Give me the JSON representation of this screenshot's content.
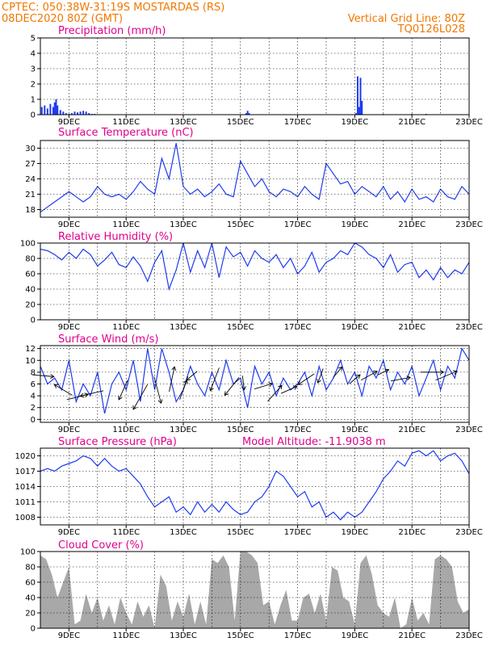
{
  "header": {
    "line1_left": "CPTEC:   050:38W-31:19S   MOSTARDAS (RS)",
    "line2_left": "08DEC2020 80Z (GMT)",
    "line1_right": "Vertical Grid Line: 80Z",
    "line2_right": "TQ0126L028"
  },
  "colors": {
    "line": "#1e3cf0",
    "bar": "#1e3cf0",
    "cloud": "#a8a8a8",
    "header": "#f07800",
    "title": "#e0008c"
  },
  "x_axis": {
    "start_day": 8,
    "end_day": 23,
    "ticks": [
      {
        "day": 9,
        "label": "9DEC"
      },
      {
        "day": 11,
        "label": "11DEC"
      },
      {
        "day": 13,
        "label": "13DEC"
      },
      {
        "day": 15,
        "label": "15DEC"
      },
      {
        "day": 17,
        "label": "17DEC"
      },
      {
        "day": 19,
        "label": "19DEC"
      },
      {
        "day": 21,
        "label": "21DEC"
      },
      {
        "day": 23,
        "label": "23DEC"
      }
    ]
  },
  "chart_data": [
    {
      "id": "precip",
      "type": "bar",
      "title": "Precipitation (mm/h)",
      "ylim": [
        0,
        5
      ],
      "yticks": [
        0,
        1,
        2,
        3,
        4,
        5
      ],
      "x": [
        8.05,
        8.15,
        8.25,
        8.35,
        8.45,
        8.5,
        8.55,
        8.6,
        8.7,
        8.8,
        8.9,
        9.0,
        9.1,
        9.2,
        9.3,
        9.4,
        9.5,
        9.6,
        9.7,
        9.8,
        9.9,
        15.2,
        15.25,
        15.3,
        19.05,
        19.1,
        19.15,
        19.2,
        19.25,
        20.0,
        21.0,
        21.5
      ],
      "values": [
        0.5,
        0.6,
        0.4,
        0.7,
        0.5,
        0.8,
        1.0,
        0.6,
        0.3,
        0.2,
        0.1,
        0.05,
        0.1,
        0.2,
        0.15,
        0.2,
        0.25,
        0.2,
        0.1,
        0.05,
        0.05,
        0.1,
        0.25,
        0.1,
        0.1,
        2.5,
        0.5,
        2.4,
        0.9,
        0.05,
        0.05,
        0.05
      ]
    },
    {
      "id": "temp",
      "type": "line",
      "title": "Surface Temperature (nC)",
      "ylim": [
        16.5,
        31.5
      ],
      "yticks": [
        18,
        21,
        24,
        27,
        30
      ],
      "x": [
        8,
        8.25,
        8.5,
        8.75,
        9,
        9.25,
        9.5,
        9.75,
        10,
        10.25,
        10.5,
        10.75,
        11,
        11.25,
        11.5,
        11.75,
        12,
        12.25,
        12.5,
        12.75,
        13,
        13.25,
        13.5,
        13.75,
        14,
        14.25,
        14.5,
        14.75,
        15,
        15.25,
        15.5,
        15.75,
        16,
        16.25,
        16.5,
        16.75,
        17,
        17.25,
        17.5,
        17.75,
        18,
        18.25,
        18.5,
        18.75,
        19,
        19.25,
        19.5,
        19.75,
        20,
        20.25,
        20.5,
        20.75,
        21,
        21.25,
        21.5,
        21.75,
        22,
        22.25,
        22.5,
        22.75,
        23
      ],
      "values": [
        17.5,
        18.5,
        19.5,
        20.5,
        21.5,
        20.5,
        19.5,
        20.5,
        22.5,
        21,
        20.5,
        21,
        20,
        21.5,
        23.5,
        22,
        21,
        28,
        24,
        31,
        22.5,
        21,
        22,
        20.5,
        21.5,
        23,
        21,
        20.5,
        27.5,
        25,
        22.5,
        24,
        21.5,
        20.5,
        22,
        21.5,
        20.5,
        22.5,
        21,
        20,
        27,
        25,
        23,
        23.5,
        21,
        22.5,
        21.5,
        20.5,
        22.5,
        20,
        21.5,
        19.5,
        22,
        20,
        20.5,
        19.5,
        22,
        20.5,
        20,
        22.5,
        21
      ]
    },
    {
      "id": "rh",
      "type": "line",
      "title": "Relative Humidity (%)",
      "ylim": [
        0,
        100
      ],
      "yticks": [
        0,
        20,
        40,
        60,
        80,
        100
      ],
      "x": [
        8,
        8.25,
        8.5,
        8.75,
        9,
        9.25,
        9.5,
        9.75,
        10,
        10.25,
        10.5,
        10.75,
        11,
        11.25,
        11.5,
        11.75,
        12,
        12.25,
        12.5,
        12.75,
        13,
        13.25,
        13.5,
        13.75,
        14,
        14.25,
        14.5,
        14.75,
        15,
        15.25,
        15.5,
        15.75,
        16,
        16.25,
        16.5,
        16.75,
        17,
        17.25,
        17.5,
        17.75,
        18,
        18.25,
        18.5,
        18.75,
        19,
        19.25,
        19.5,
        19.75,
        20,
        20.25,
        20.5,
        20.75,
        21,
        21.25,
        21.5,
        21.75,
        22,
        22.25,
        22.5,
        22.75,
        23
      ],
      "values": [
        92,
        90,
        85,
        78,
        88,
        80,
        92,
        85,
        70,
        78,
        88,
        72,
        68,
        82,
        70,
        50,
        75,
        90,
        40,
        65,
        100,
        62,
        90,
        68,
        100,
        55,
        95,
        82,
        88,
        70,
        90,
        80,
        75,
        85,
        68,
        80,
        60,
        70,
        88,
        62,
        75,
        80,
        90,
        85,
        100,
        95,
        85,
        80,
        68,
        85,
        62,
        72,
        75,
        55,
        65,
        52,
        68,
        55,
        65,
        60,
        75
      ]
    },
    {
      "id": "wind",
      "type": "line",
      "title": "Surface Wind (m/s)",
      "ylim": [
        -0.5,
        12.5
      ],
      "yticks": [
        0,
        2,
        4,
        6,
        8,
        10,
        12
      ],
      "x": [
        8,
        8.25,
        8.5,
        8.75,
        9,
        9.25,
        9.5,
        9.75,
        10,
        10.25,
        10.5,
        10.75,
        11,
        11.25,
        11.5,
        11.75,
        12,
        12.25,
        12.5,
        12.75,
        13,
        13.25,
        13.5,
        13.75,
        14,
        14.25,
        14.5,
        14.75,
        15,
        15.25,
        15.5,
        15.75,
        16,
        16.25,
        16.5,
        16.75,
        17,
        17.25,
        17.5,
        17.75,
        18,
        18.25,
        18.5,
        18.75,
        19,
        19.25,
        19.5,
        19.75,
        20,
        20.25,
        20.5,
        20.75,
        21,
        21.25,
        21.5,
        21.75,
        22,
        22.25,
        22.5,
        22.75,
        23
      ],
      "values": [
        9,
        6,
        7,
        5,
        10,
        3,
        6,
        4,
        8,
        1,
        6,
        8,
        5,
        10,
        3,
        12,
        5,
        12,
        8,
        3,
        5,
        9,
        6,
        4,
        8,
        5,
        10,
        6,
        7,
        2,
        9,
        6,
        8,
        4,
        7,
        5,
        6,
        8,
        4,
        9,
        5,
        7,
        10,
        6,
        8,
        4,
        9,
        7,
        10,
        5,
        8,
        6,
        9,
        4,
        7,
        10,
        5,
        9,
        7,
        12,
        10
      ]
    },
    {
      "id": "pres",
      "type": "line",
      "title": "Surface Pressure (hPa)",
      "subtitle": "Model Altitude: -11.9038 m",
      "ylim": [
        1006.5,
        1021.5
      ],
      "yticks": [
        1008,
        1011,
        1014,
        1017,
        1020
      ],
      "x": [
        8,
        8.25,
        8.5,
        8.75,
        9,
        9.25,
        9.5,
        9.75,
        10,
        10.25,
        10.5,
        10.75,
        11,
        11.25,
        11.5,
        11.75,
        12,
        12.25,
        12.5,
        12.75,
        13,
        13.25,
        13.5,
        13.75,
        14,
        14.25,
        14.5,
        14.75,
        15,
        15.25,
        15.5,
        15.75,
        16,
        16.25,
        16.5,
        16.75,
        17,
        17.25,
        17.5,
        17.75,
        18,
        18.25,
        18.5,
        18.75,
        19,
        19.25,
        19.5,
        19.75,
        20,
        20.25,
        20.5,
        20.75,
        21,
        21.25,
        21.5,
        21.75,
        22,
        22.25,
        22.5,
        22.75,
        23
      ],
      "values": [
        1017,
        1017.5,
        1017,
        1018,
        1018.5,
        1019,
        1020,
        1019.5,
        1018,
        1019.5,
        1018,
        1017,
        1017.5,
        1016,
        1014.5,
        1012,
        1010,
        1011,
        1012,
        1009,
        1010,
        1008.5,
        1011,
        1009,
        1010.5,
        1009,
        1011,
        1009.5,
        1008.5,
        1009,
        1011,
        1012,
        1014,
        1017,
        1016,
        1014,
        1012,
        1013,
        1010,
        1011,
        1008,
        1009,
        1007.5,
        1009,
        1008,
        1009,
        1011,
        1013,
        1015.5,
        1017,
        1019,
        1018,
        1020.5,
        1021,
        1020,
        1021,
        1019,
        1020,
        1020.5,
        1019,
        1016.5
      ]
    },
    {
      "id": "cloud",
      "type": "area",
      "title": "Cloud Cover (%)",
      "ylim": [
        0,
        100
      ],
      "yticks": [
        0,
        20,
        40,
        60,
        80,
        100
      ],
      "x": [
        8,
        8.2,
        8.4,
        8.6,
        8.8,
        9,
        9.2,
        9.4,
        9.6,
        9.8,
        10,
        10.2,
        10.4,
        10.6,
        10.8,
        11,
        11.2,
        11.4,
        11.6,
        11.8,
        12,
        12.2,
        12.4,
        12.6,
        12.8,
        13,
        13.2,
        13.4,
        13.6,
        13.8,
        14,
        14.2,
        14.4,
        14.6,
        14.8,
        15,
        15.2,
        15.4,
        15.6,
        15.8,
        16,
        16.2,
        16.4,
        16.6,
        16.8,
        17,
        17.2,
        17.4,
        17.6,
        17.8,
        18,
        18.2,
        18.4,
        18.6,
        18.8,
        19,
        19.2,
        19.4,
        19.6,
        19.8,
        20,
        20.2,
        20.4,
        20.6,
        20.8,
        21,
        21.2,
        21.4,
        21.6,
        21.8,
        22,
        22.2,
        22.4,
        22.6,
        22.8,
        23
      ],
      "values": [
        95,
        90,
        70,
        40,
        60,
        80,
        5,
        10,
        45,
        20,
        40,
        10,
        30,
        5,
        40,
        20,
        5,
        35,
        15,
        30,
        0,
        70,
        55,
        10,
        35,
        15,
        45,
        5,
        35,
        5,
        90,
        85,
        95,
        80,
        10,
        100,
        100,
        95,
        85,
        30,
        35,
        5,
        30,
        50,
        10,
        10,
        40,
        45,
        20,
        45,
        10,
        80,
        75,
        40,
        35,
        5,
        85,
        95,
        70,
        30,
        20,
        15,
        40,
        0,
        5,
        40,
        10,
        20,
        5,
        90,
        95,
        90,
        80,
        35,
        20,
        25
      ]
    }
  ],
  "wind_vectors": [
    {
      "x": 8.1,
      "u": 1.2,
      "v": -0.1
    },
    {
      "x": 8.8,
      "u": -1.0,
      "v": 0.6
    },
    {
      "x": 9.3,
      "u": 1.2,
      "v": 0.3
    },
    {
      "x": 9.8,
      "u": -1.3,
      "v": -0.3
    },
    {
      "x": 10.9,
      "u": -0.5,
      "v": -1.1
    },
    {
      "x": 11.5,
      "u": -0.8,
      "v": -1.4
    },
    {
      "x": 12.1,
      "u": 0.4,
      "v": -1.5
    },
    {
      "x": 12.6,
      "u": 0.3,
      "v": 1.4
    },
    {
      "x": 13.0,
      "u": 0.4,
      "v": 1.1
    },
    {
      "x": 13.3,
      "u": -0.6,
      "v": -0.5
    },
    {
      "x": 14.1,
      "u": -0.5,
      "v": -1.3
    },
    {
      "x": 14.7,
      "u": -0.8,
      "v": -1.0
    },
    {
      "x": 15.1,
      "u": 0.1,
      "v": -0.8
    },
    {
      "x": 15.8,
      "u": 1.0,
      "v": 0.3
    },
    {
      "x": 16.2,
      "u": 0.8,
      "v": 0.9
    },
    {
      "x": 16.7,
      "u": 0.9,
      "v": 0.4
    },
    {
      "x": 17.3,
      "u": -0.9,
      "v": -0.6
    },
    {
      "x": 17.8,
      "u": -0.3,
      "v": -0.8
    },
    {
      "x": 18.4,
      "u": 0.5,
      "v": 0.6
    },
    {
      "x": 19.0,
      "u": 0.6,
      "v": 0.5
    },
    {
      "x": 19.5,
      "u": 0.9,
      "v": 0.5
    },
    {
      "x": 20.0,
      "u": 0.6,
      "v": 0.3
    },
    {
      "x": 20.6,
      "u": 1.1,
      "v": 0.2
    },
    {
      "x": 21.7,
      "u": 1.3,
      "v": 0.0
    },
    {
      "x": 22.2,
      "u": 1.2,
      "v": 0.5
    }
  ]
}
